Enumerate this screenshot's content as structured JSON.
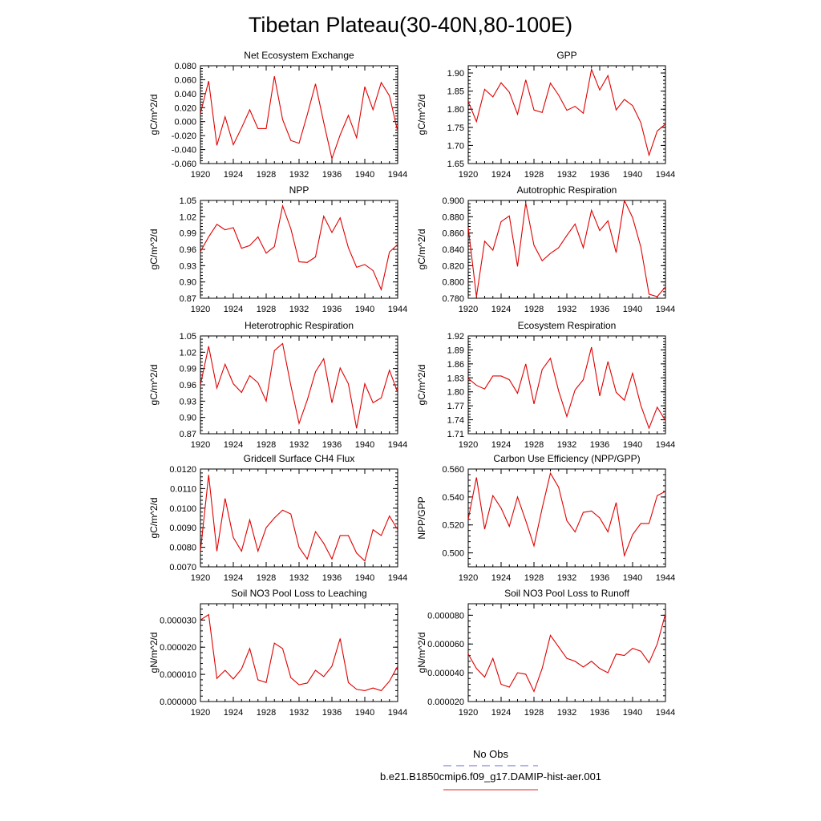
{
  "page": {
    "title": "Tibetan Plateau(30-40N,80-100E)"
  },
  "legend": {
    "items": [
      {
        "label": "No Obs",
        "color": "#6a6ad8",
        "dashed": true
      },
      {
        "label": "b.e21.B1850cmip6.f09_g17.DAMIP-hist-aer.001",
        "color": "#e02020",
        "dashed": false
      }
    ]
  },
  "colors": {
    "series": "#e00000"
  },
  "chart_data": [
    {
      "type": "line",
      "title": "Net Ecosystem Exchange",
      "ylabel": "gC/m^2/d",
      "xlim": [
        1920,
        1944
      ],
      "ylim": [
        -0.06,
        0.08
      ],
      "xticks": [
        "1920",
        "1924",
        "1928",
        "1932",
        "1936",
        "1940",
        "1944"
      ],
      "yticks": [
        "-0.060",
        "-0.040",
        "-0.020",
        "0.000",
        "0.020",
        "0.040",
        "0.060",
        "0.080"
      ],
      "x": [
        1920,
        1921,
        1922,
        1923,
        1924,
        1925,
        1926,
        1927,
        1928,
        1929,
        1930,
        1931,
        1932,
        1933,
        1934,
        1935,
        1936,
        1937,
        1938,
        1939,
        1940,
        1941,
        1942,
        1943,
        1944
      ],
      "values": [
        0.012,
        0.058,
        -0.034,
        0.007,
        -0.033,
        -0.009,
        0.017,
        -0.01,
        -0.01,
        0.065,
        0.003,
        -0.027,
        -0.031,
        0.01,
        0.054,
        -0.001,
        -0.053,
        -0.019,
        0.009,
        -0.023,
        0.05,
        0.017,
        0.056,
        0.037,
        -0.014
      ]
    },
    {
      "type": "line",
      "title": "GPP",
      "ylabel": "gC/m^2/d",
      "xlim": [
        1920,
        1944
      ],
      "ylim": [
        1.65,
        1.92
      ],
      "xticks": [
        "1920",
        "1924",
        "1928",
        "1932",
        "1936",
        "1940",
        "1944"
      ],
      "yticks": [
        "1.65",
        "1.70",
        "1.75",
        "1.80",
        "1.85",
        "1.90"
      ],
      "x": [
        1920,
        1921,
        1922,
        1923,
        1924,
        1925,
        1926,
        1927,
        1928,
        1929,
        1930,
        1931,
        1932,
        1933,
        1934,
        1935,
        1936,
        1937,
        1938,
        1939,
        1940,
        1941,
        1942,
        1943,
        1944
      ],
      "values": [
        1.821,
        1.766,
        1.855,
        1.834,
        1.873,
        1.847,
        1.786,
        1.881,
        1.798,
        1.791,
        1.872,
        1.839,
        1.797,
        1.808,
        1.789,
        1.91,
        1.853,
        1.893,
        1.798,
        1.827,
        1.81,
        1.763,
        1.673,
        1.74,
        1.759
      ]
    },
    {
      "type": "line",
      "title": "NPP",
      "ylabel": "gC/m^2/d",
      "xlim": [
        1920,
        1944
      ],
      "ylim": [
        0.87,
        1.05
      ],
      "xticks": [
        "1920",
        "1924",
        "1928",
        "1932",
        "1936",
        "1940",
        "1944"
      ],
      "yticks": [
        "0.87",
        "0.90",
        "0.93",
        "0.96",
        "0.99",
        "1.02",
        "1.05"
      ],
      "x": [
        1920,
        1921,
        1922,
        1923,
        1924,
        1925,
        1926,
        1927,
        1928,
        1929,
        1930,
        1931,
        1932,
        1933,
        1934,
        1935,
        1936,
        1937,
        1938,
        1939,
        1940,
        1941,
        1942,
        1943,
        1944
      ],
      "values": [
        0.956,
        0.983,
        1.006,
        0.996,
        1.0,
        0.962,
        0.967,
        0.983,
        0.953,
        0.965,
        1.04,
        0.998,
        0.937,
        0.936,
        0.946,
        1.021,
        0.991,
        1.018,
        0.963,
        0.927,
        0.932,
        0.921,
        0.886,
        0.955,
        0.969
      ]
    },
    {
      "type": "line",
      "title": "Autotrophic Respiration",
      "ylabel": "gC/m^2/d",
      "xlim": [
        1920,
        1944
      ],
      "ylim": [
        0.78,
        0.9
      ],
      "xticks": [
        "1920",
        "1924",
        "1928",
        "1932",
        "1936",
        "1940",
        "1944"
      ],
      "yticks": [
        "0.780",
        "0.800",
        "0.820",
        "0.840",
        "0.860",
        "0.880",
        "0.900"
      ],
      "x": [
        1920,
        1921,
        1922,
        1923,
        1924,
        1925,
        1926,
        1927,
        1928,
        1929,
        1930,
        1931,
        1932,
        1933,
        1934,
        1935,
        1936,
        1937,
        1938,
        1939,
        1940,
        1941,
        1942,
        1943,
        1944
      ],
      "values": [
        0.867,
        0.782,
        0.85,
        0.839,
        0.874,
        0.881,
        0.819,
        0.897,
        0.845,
        0.826,
        0.835,
        0.842,
        0.857,
        0.871,
        0.842,
        0.888,
        0.863,
        0.875,
        0.836,
        0.9,
        0.879,
        0.843,
        0.785,
        0.782,
        0.794
      ]
    },
    {
      "type": "line",
      "title": "Heterotrophic Respiration",
      "ylabel": "gC/m^2/d",
      "xlim": [
        1920,
        1944
      ],
      "ylim": [
        0.87,
        1.05
      ],
      "xticks": [
        "1920",
        "1924",
        "1928",
        "1932",
        "1936",
        "1940",
        "1944"
      ],
      "yticks": [
        "0.87",
        "0.90",
        "0.93",
        "0.96",
        "0.99",
        "1.02",
        "1.05"
      ],
      "x": [
        1920,
        1921,
        1922,
        1923,
        1924,
        1925,
        1926,
        1927,
        1928,
        1929,
        1930,
        1931,
        1932,
        1933,
        1934,
        1935,
        1936,
        1937,
        1938,
        1939,
        1940,
        1941,
        1942,
        1943,
        1944
      ],
      "values": [
        0.96,
        1.031,
        0.954,
        0.998,
        0.962,
        0.946,
        0.977,
        0.964,
        0.93,
        1.023,
        1.036,
        0.959,
        0.889,
        0.932,
        0.984,
        1.008,
        0.927,
        0.991,
        0.962,
        0.88,
        0.962,
        0.927,
        0.936,
        0.987,
        0.946
      ]
    },
    {
      "type": "line",
      "title": "Ecosystem Respiration",
      "ylabel": "gC/m^2/d",
      "xlim": [
        1920,
        1944
      ],
      "ylim": [
        1.71,
        1.92
      ],
      "xticks": [
        "1920",
        "1924",
        "1928",
        "1932",
        "1936",
        "1940",
        "1944"
      ],
      "yticks": [
        "1.71",
        "1.74",
        "1.77",
        "1.80",
        "1.83",
        "1.86",
        "1.89",
        "1.92"
      ],
      "x": [
        1920,
        1921,
        1922,
        1923,
        1924,
        1925,
        1926,
        1927,
        1928,
        1929,
        1930,
        1931,
        1932,
        1933,
        1934,
        1935,
        1936,
        1937,
        1938,
        1939,
        1940,
        1941,
        1942,
        1943,
        1944
      ],
      "values": [
        1.829,
        1.814,
        1.806,
        1.834,
        1.834,
        1.826,
        1.797,
        1.86,
        1.774,
        1.848,
        1.872,
        1.802,
        1.747,
        1.804,
        1.826,
        1.896,
        1.791,
        1.865,
        1.799,
        1.782,
        1.84,
        1.771,
        1.722,
        1.767,
        1.738
      ]
    },
    {
      "type": "line",
      "title": "Gridcell Surface CH4 Flux",
      "ylabel": "gC/m^2/d",
      "xlim": [
        1920,
        1944
      ],
      "ylim": [
        0.007,
        0.012
      ],
      "xticks": [
        "1920",
        "1924",
        "1928",
        "1932",
        "1936",
        "1940",
        "1944"
      ],
      "yticks": [
        "0.0070",
        "0.0080",
        "0.0090",
        "0.0100",
        "0.0110",
        "0.0120"
      ],
      "x": [
        1920,
        1921,
        1922,
        1923,
        1924,
        1925,
        1926,
        1927,
        1928,
        1929,
        1930,
        1931,
        1932,
        1933,
        1934,
        1935,
        1936,
        1937,
        1938,
        1939,
        1940,
        1941,
        1942,
        1943,
        1944
      ],
      "values": [
        0.0078,
        0.0117,
        0.0078,
        0.0105,
        0.0085,
        0.0078,
        0.0094,
        0.0078,
        0.009,
        0.0095,
        0.0099,
        0.0097,
        0.008,
        0.0074,
        0.0088,
        0.0082,
        0.0074,
        0.0086,
        0.0086,
        0.0077,
        0.0073,
        0.0089,
        0.0086,
        0.0096,
        0.0089
      ]
    },
    {
      "type": "line",
      "title": "Carbon Use Efficiency (NPP/GPP)",
      "ylabel": "NPP/GPP",
      "xlim": [
        1920,
        1944
      ],
      "ylim": [
        0.49,
        0.56
      ],
      "xticks": [
        "1920",
        "1924",
        "1928",
        "1932",
        "1936",
        "1940",
        "1944"
      ],
      "yticks": [
        "0.500",
        "0.520",
        "0.540",
        "0.560"
      ],
      "x": [
        1920,
        1921,
        1922,
        1923,
        1924,
        1925,
        1926,
        1927,
        1928,
        1929,
        1930,
        1931,
        1932,
        1933,
        1934,
        1935,
        1936,
        1937,
        1938,
        1939,
        1940,
        1941,
        1942,
        1943,
        1944
      ],
      "values": [
        0.524,
        0.554,
        0.517,
        0.541,
        0.532,
        0.519,
        0.54,
        0.523,
        0.505,
        0.532,
        0.557,
        0.547,
        0.523,
        0.515,
        0.529,
        0.53,
        0.525,
        0.515,
        0.536,
        0.498,
        0.513,
        0.521,
        0.521,
        0.541,
        0.544
      ]
    },
    {
      "type": "line",
      "title": "Soil NO3 Pool Loss to Leaching",
      "ylabel": "gN/m^2/d",
      "xlim": [
        1920,
        1944
      ],
      "ylim": [
        0.0,
        3.6e-05
      ],
      "xticks": [
        "1920",
        "1924",
        "1928",
        "1932",
        "1936",
        "1940",
        "1944"
      ],
      "yticks": [
        "0.000000",
        "0.000010",
        "0.000020",
        "0.000030"
      ],
      "x": [
        1920,
        1921,
        1922,
        1923,
        1924,
        1925,
        1926,
        1927,
        1928,
        1929,
        1930,
        1931,
        1932,
        1933,
        1934,
        1935,
        1936,
        1937,
        1938,
        1939,
        1940,
        1941,
        1942,
        1943,
        1944
      ],
      "values": [
        3e-05,
        3.2e-05,
        8.5e-06,
        1.15e-05,
        8.3e-06,
        1.2e-05,
        1.95e-05,
        8e-06,
        7e-06,
        2.15e-05,
        1.95e-05,
        8.8e-06,
        6.2e-06,
        6.8e-06,
        1.15e-05,
        9.2e-06,
        1.3e-05,
        2.32e-05,
        7e-06,
        4.5e-06,
        4e-06,
        5e-06,
        4e-06,
        7.5e-06,
        1.3e-05
      ]
    },
    {
      "type": "line",
      "title": "Soil NO3 Pool Loss to Runoff",
      "ylabel": "gN/m^2/d",
      "xlim": [
        1920,
        1944
      ],
      "ylim": [
        2e-05,
        8.8e-05
      ],
      "xticks": [
        "1920",
        "1924",
        "1928",
        "1932",
        "1936",
        "1940",
        "1944"
      ],
      "yticks": [
        "0.000020",
        "0.000040",
        "0.000060",
        "0.000080"
      ],
      "x": [
        1920,
        1921,
        1922,
        1923,
        1924,
        1925,
        1926,
        1927,
        1928,
        1929,
        1930,
        1931,
        1932,
        1933,
        1934,
        1935,
        1936,
        1937,
        1938,
        1939,
        1940,
        1941,
        1942,
        1943,
        1944
      ],
      "values": [
        5.3e-05,
        4.3e-05,
        3.7e-05,
        5e-05,
        3.2e-05,
        3e-05,
        4e-05,
        3.9e-05,
        2.7e-05,
        4.3e-05,
        6.6e-05,
        5.8e-05,
        5e-05,
        4.8e-05,
        4.4e-05,
        4.8e-05,
        4.3e-05,
        4e-05,
        5.3e-05,
        5.2e-05,
        5.7e-05,
        5.5e-05,
        4.7e-05,
        6e-05,
        8.1e-05
      ]
    }
  ]
}
